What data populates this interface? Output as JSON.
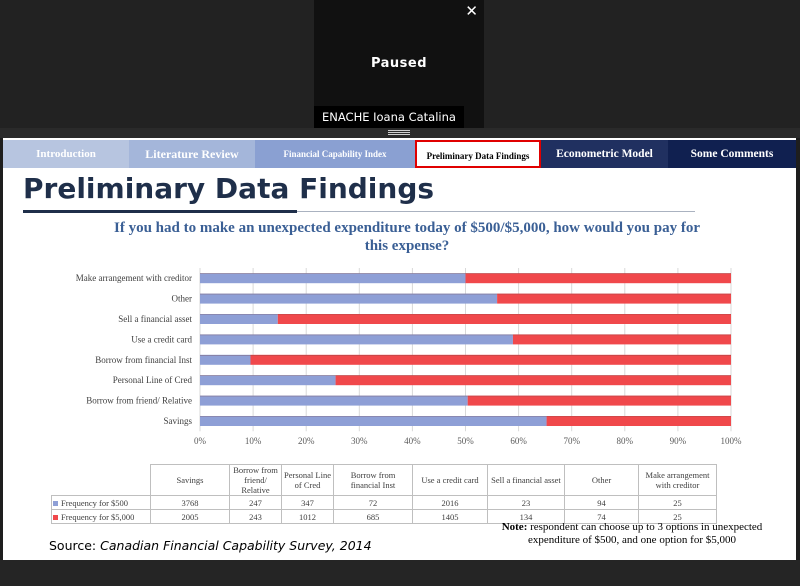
{
  "video": {
    "status": "Paused",
    "participant_name": "ENACHE Ioana Catalina",
    "close_icon": "close-icon",
    "close_glyph": "✕"
  },
  "slide": {
    "tabs": [
      {
        "label": "Introduction",
        "bg": "#b7c5e0",
        "fg": "#ffffff",
        "active": false
      },
      {
        "label": "Literature Review",
        "bg": "#a4b6da",
        "fg": "#ffffff",
        "active": false
      },
      {
        "label": "Financial Capability Index",
        "bg": "#8aa0d2",
        "fg": "#ffffff",
        "active": false
      },
      {
        "label": "Preliminary Data Findings",
        "bg": "#ffffff",
        "fg": "#000000",
        "active": true
      },
      {
        "label": "Econometric Model",
        "bg": "#203060",
        "fg": "#ffffff",
        "active": false
      },
      {
        "label": "Some Comments",
        "bg": "#102050",
        "fg": "#ffffff",
        "active": false
      }
    ],
    "title": "Preliminary Data Findings",
    "question": "If you had to make an unexpected expenditure today of $500/$5,000, how would you pay for this expense?",
    "note_label": "Note:",
    "note_text": "respondent can choose up to 3 options in unexpected expenditure of $500, and one option for $5,000",
    "source_label": "Source:",
    "source_text": "Canadian Financial Capability Survey, 2014"
  },
  "chart_data": {
    "type": "bar",
    "orientation": "horizontal",
    "stacked": "percent",
    "categories": [
      "Make arrangement with creditor",
      "Other",
      "Sell a financial asset",
      "Use a credit card",
      "Borrow from financial Inst",
      "Personal Line of Cred",
      "Borrow from friend/ Relative",
      "Savings"
    ],
    "series": [
      {
        "name": "Frequency for $500",
        "color": "#8e9fd6",
        "values": [
          25,
          94,
          23,
          2016,
          72,
          347,
          247,
          3768
        ]
      },
      {
        "name": "Frequency for $5,000",
        "color": "#f0484b",
        "values": [
          25,
          74,
          134,
          1405,
          685,
          1012,
          243,
          2005
        ]
      }
    ],
    "xlim": [
      0,
      100
    ],
    "xticks": [
      "0%",
      "10%",
      "20%",
      "30%",
      "40%",
      "50%",
      "60%",
      "70%",
      "80%",
      "90%",
      "100%"
    ],
    "grid": true,
    "legend": "table-below"
  },
  "table": {
    "headers": [
      "Savings",
      "Borrow from friend/ Relative",
      "Personal Line of Cred",
      "Borrow from financial Inst",
      "Use a credit card",
      "Sell a financial asset",
      "Other",
      "Make arrangement with creditor"
    ],
    "rows": [
      {
        "label": "Frequency for $500",
        "color": "#8e9fd6",
        "values": [
          "3768",
          "247",
          "347",
          "72",
          "2016",
          "23",
          "94",
          "25"
        ]
      },
      {
        "label": "Frequency for $5,000",
        "color": "#f0484b",
        "values": [
          "2005",
          "243",
          "1012",
          "685",
          "1405",
          "134",
          "74",
          "25"
        ]
      }
    ]
  }
}
